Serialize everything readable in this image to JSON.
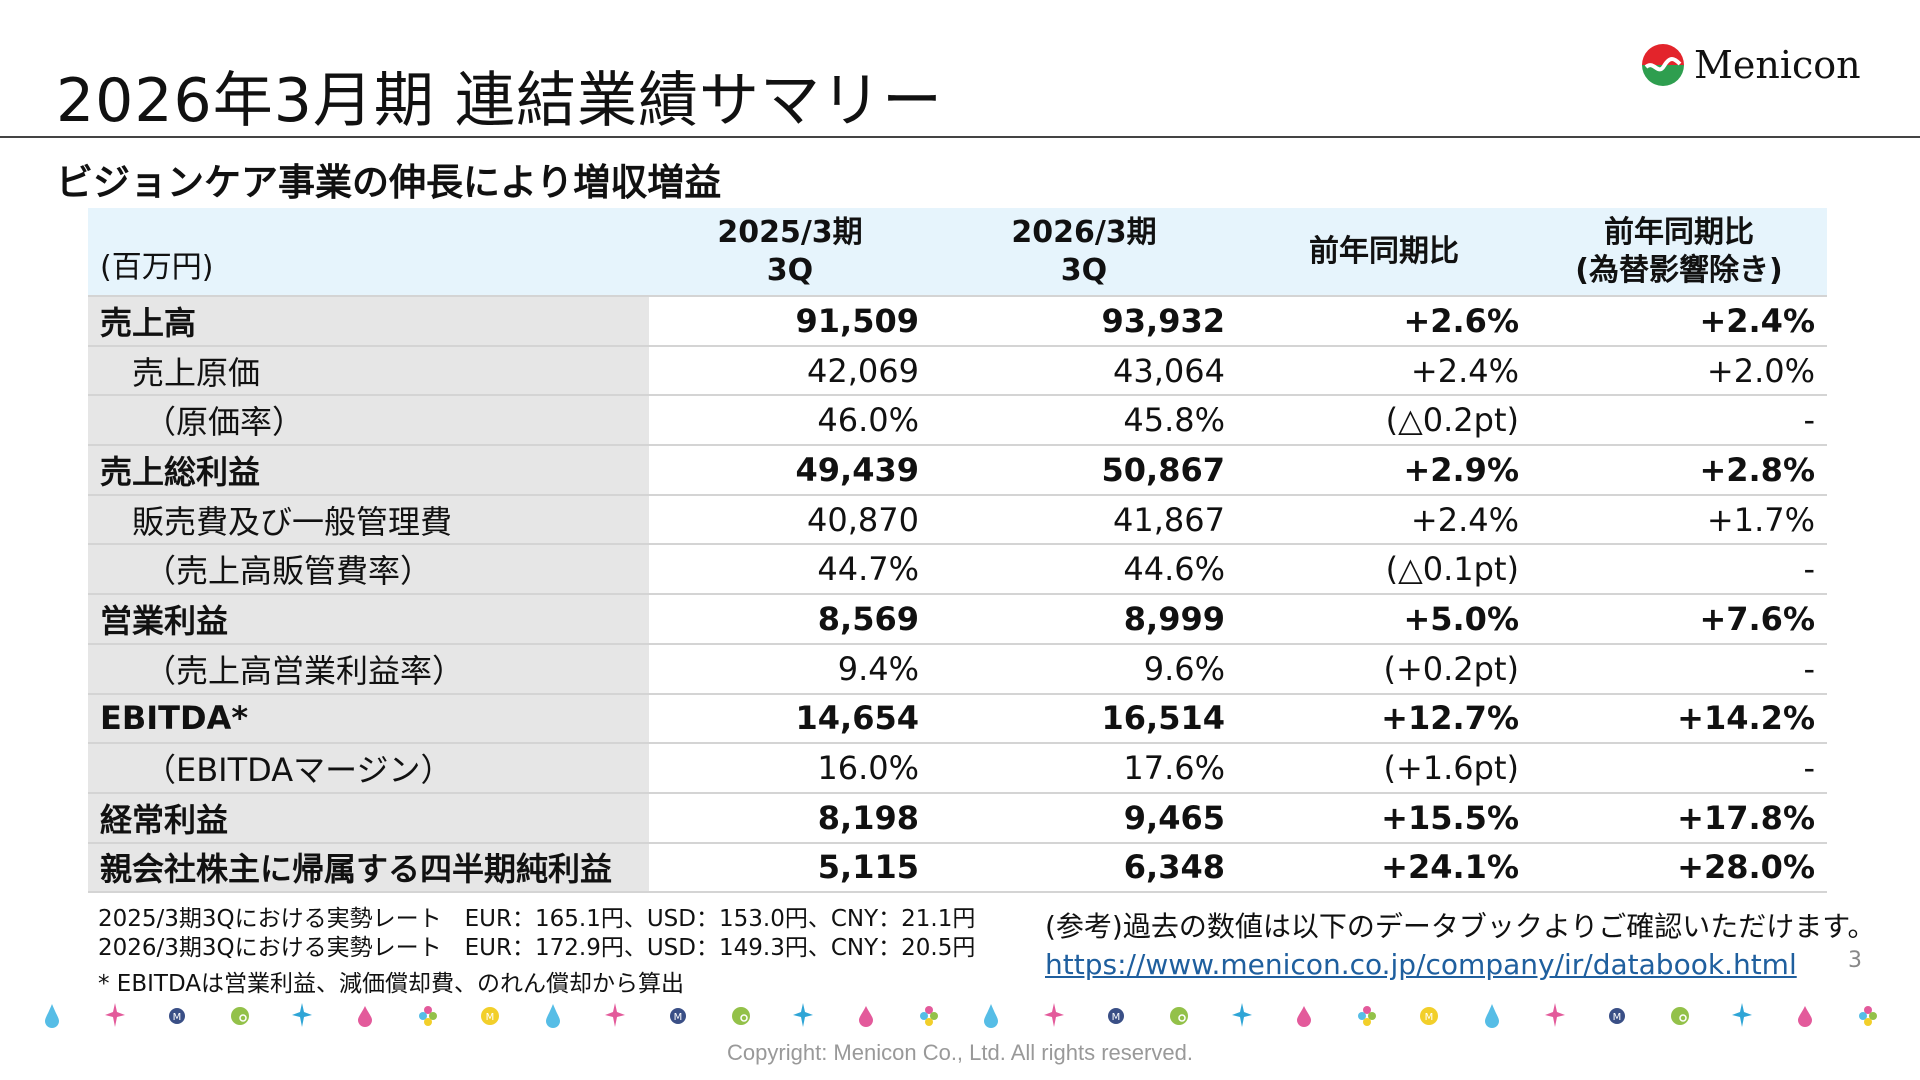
{
  "header": {
    "title": "2026年3月期 連結業績サマリー",
    "logo_text": "Menicon",
    "subtitle": "ビジョンケア事業の伸長により増収増益"
  },
  "table": {
    "unit": "(百万円)",
    "columns": [
      "2025/3期\n3Q",
      "2026/3期\n3Q",
      "前年同期比",
      "前年同期比\n(為替影響除き)"
    ],
    "rows": [
      {
        "label": "売上高",
        "bold": true,
        "indent": 0,
        "values": [
          "91,509",
          "93,932",
          "+2.6%",
          "+2.4%"
        ]
      },
      {
        "label": "売上原価",
        "bold": false,
        "indent": 1,
        "values": [
          "42,069",
          "43,064",
          "+2.4%",
          "+2.0%"
        ]
      },
      {
        "label": "（原価率）",
        "bold": false,
        "indent": 2,
        "values": [
          "46.0%",
          "45.8%",
          "(△0.2pt)",
          "-"
        ]
      },
      {
        "label": "売上総利益",
        "bold": true,
        "indent": 0,
        "values": [
          "49,439",
          "50,867",
          "+2.9%",
          "+2.8%"
        ]
      },
      {
        "label": "販売費及び一般管理費",
        "bold": false,
        "indent": 1,
        "values": [
          "40,870",
          "41,867",
          "+2.4%",
          "+1.7%"
        ]
      },
      {
        "label": "（売上高販管費率）",
        "bold": false,
        "indent": 2,
        "values": [
          "44.7%",
          "44.6%",
          "(△0.1pt)",
          "-"
        ]
      },
      {
        "label": "営業利益",
        "bold": true,
        "indent": 0,
        "values": [
          "8,569",
          "8,999",
          "+5.0%",
          "+7.6%"
        ]
      },
      {
        "label": "（売上高営業利益率）",
        "bold": false,
        "indent": 2,
        "values": [
          "9.4%",
          "9.6%",
          "(+0.2pt)",
          "-"
        ]
      },
      {
        "label": "EBITDA*",
        "bold": true,
        "indent": 0,
        "values": [
          "14,654",
          "16,514",
          "+12.7%",
          "+14.2%"
        ]
      },
      {
        "label": "（EBITDAマージン）",
        "bold": false,
        "indent": 2,
        "values": [
          "16.0%",
          "17.6%",
          "(+1.6pt)",
          "-"
        ]
      },
      {
        "label": "経常利益",
        "bold": true,
        "indent": 0,
        "values": [
          "8,198",
          "9,465",
          "+15.5%",
          "+17.8%"
        ]
      },
      {
        "label": "親会社株主に帰属する四半期純利益",
        "bold": true,
        "indent": 0,
        "values": [
          "5,115",
          "6,348",
          "+24.1%",
          "+28.0%"
        ]
      }
    ]
  },
  "footnotes": {
    "rate_2025": "2025/3期3Qにおける実勢レート　EUR：165.1円、USD：153.0円、CNY：21.1円",
    "rate_2026": "2026/3期3Qにおける実勢レート　EUR：172.9円、USD：149.3円、CNY：20.5円",
    "ebitda": "* EBITDAは営業利益、減価償却費、のれん償却から算出",
    "reference": "(参考)過去の数値は以下のデータブックよりご確認いただけます。",
    "link": "https://www.menicon.co.jp/company/ir/databook.html"
  },
  "page_number": "3",
  "copyright": "Copyright: Menicon Co., Ltd. All rights reserved.",
  "colors": {
    "header_bg": "#e6f4fc",
    "label_bg": "#e6e6e6",
    "link": "#1f5f9e",
    "logo_red": "#e3242b",
    "logo_green": "#2e9e4f"
  },
  "decor_icons": [
    "drop-blue",
    "sparkle-pink",
    "m-navy",
    "ball-green",
    "sparkle-blue",
    "drop-pink",
    "flower",
    "m-yellow",
    "drop-blue",
    "sparkle-pink",
    "m-navy",
    "ball-green",
    "sparkle-blue",
    "drop-pink",
    "flower",
    "drop-blue",
    "sparkle-pink",
    "m-navy",
    "ball-green",
    "sparkle-blue",
    "drop-pink",
    "flower",
    "m-yellow",
    "drop-blue",
    "sparkle-pink",
    "m-navy",
    "ball-green",
    "sparkle-blue",
    "drop-pink",
    "flower"
  ]
}
